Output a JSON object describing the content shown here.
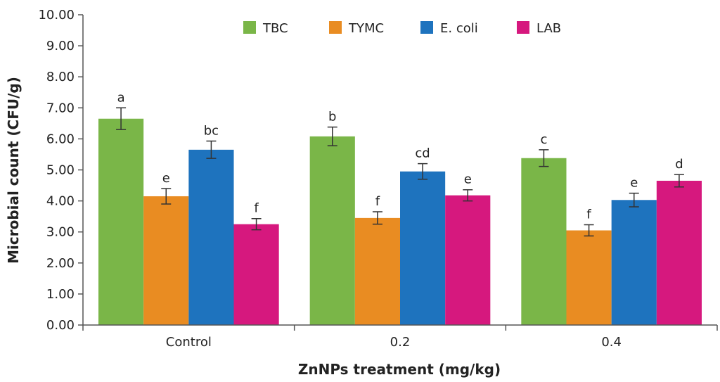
{
  "chart_data": {
    "type": "bar",
    "xlabel": "ZnNPs treatment (mg/kg)",
    "ylabel": "Microbial count (CFU/g)",
    "ylim": [
      0,
      10
    ],
    "y_ticks": [
      "0.00",
      "1.00",
      "2.00",
      "3.00",
      "4.00",
      "5.00",
      "6.00",
      "7.00",
      "8.00",
      "9.00",
      "10.00"
    ],
    "categories": [
      "Control",
      "0.2",
      "0.4"
    ],
    "grid": false,
    "legend_position": "top",
    "series": [
      {
        "name": "TBC",
        "color": "#7ab648",
        "values": [
          6.65,
          6.08,
          5.38
        ],
        "errors": [
          0.35,
          0.3,
          0.27
        ],
        "labels": [
          "a",
          "b",
          "c"
        ]
      },
      {
        "name": "TYMC",
        "color": "#e98c22",
        "values": [
          4.15,
          3.45,
          3.05
        ],
        "errors": [
          0.25,
          0.2,
          0.18
        ],
        "labels": [
          "e",
          "f",
          "f"
        ]
      },
      {
        "name": "E. coli",
        "color": "#1e73be",
        "values": [
          5.65,
          4.95,
          4.03
        ],
        "errors": [
          0.28,
          0.25,
          0.22
        ],
        "labels": [
          "bc",
          "cd",
          "e"
        ]
      },
      {
        "name": "LAB",
        "color": "#d6187e",
        "values": [
          3.25,
          4.18,
          4.65
        ],
        "errors": [
          0.18,
          0.18,
          0.2
        ],
        "labels": [
          "f",
          "e",
          "d"
        ]
      }
    ]
  }
}
